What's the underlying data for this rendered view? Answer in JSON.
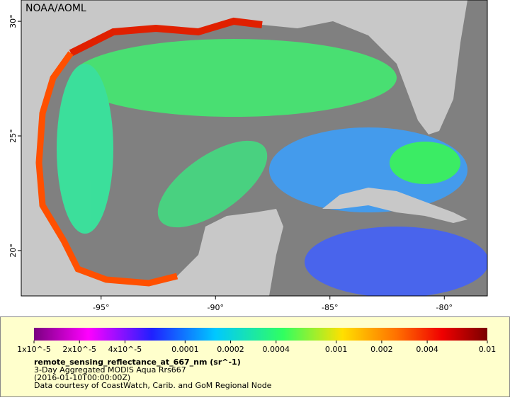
{
  "header": {
    "credit": "NOAA/AOML"
  },
  "map": {
    "lon_range": [
      -98.49,
      -78.12
    ],
    "lat_range": [
      18.02,
      30.93
    ],
    "lon_ticks": [
      {
        "value": -95,
        "label": "-95°"
      },
      {
        "value": -90,
        "label": "-90°"
      },
      {
        "value": -85,
        "label": "-85°"
      },
      {
        "value": -80,
        "label": "-80°"
      }
    ],
    "lat_ticks": [
      {
        "value": 30,
        "label": "30°"
      },
      {
        "value": 25,
        "label": "25°"
      },
      {
        "value": 20,
        "label": "20°"
      }
    ]
  },
  "colorbar": {
    "scale": "log",
    "range": [
      1e-05,
      0.01
    ],
    "ticks": [
      {
        "value": 1e-05,
        "label": "1x10^-5"
      },
      {
        "value": 2e-05,
        "label": "2x10^-5"
      },
      {
        "value": 4e-05,
        "label": "4x10^-5"
      },
      0.0001,
      0.0002,
      0.0004,
      0.001,
      0.002,
      0.004,
      0.01
    ]
  },
  "legend": {
    "title": "remote_sensing_reflectance_at_667_nm (sr^-1)",
    "lines": [
      "3-Day Aggregated MODIS Aqua Rrs667",
      "(2016-01-10T00:00:00Z)",
      "Data courtesy of CoastWatch, Carib. and GoM Regional Node"
    ]
  }
}
